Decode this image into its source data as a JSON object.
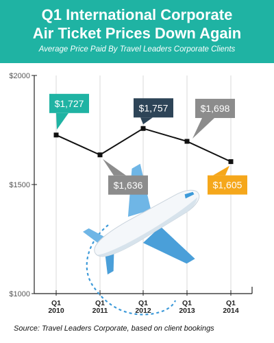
{
  "header": {
    "title_line1": "Q1 International Corporate",
    "title_line2": "Air Ticket Prices Down Again",
    "subtitle": "Average Price Paid By Travel Leaders Corporate Clients"
  },
  "source": "Source: Travel Leaders Corporate, based on client bookings",
  "colors": {
    "header_bg": "#1fb3a3",
    "line": "#111111",
    "callout_teal": "#1fb3a3",
    "callout_navy": "#2d4457",
    "callout_gray": "#8c8c8c",
    "callout_orange": "#f5a71b",
    "plane_blue": "#3d9ad9"
  },
  "icons": [
    "airplane-icon"
  ],
  "chart_data": {
    "type": "line",
    "categories": [
      "Q1\n2010",
      "Q1\n2011",
      "Q1\n2012",
      "Q1\n2013",
      "Q1\n2014"
    ],
    "category_lines": [
      [
        "Q1",
        "2010"
      ],
      [
        "Q1",
        "2011"
      ],
      [
        "Q1",
        "2012"
      ],
      [
        "Q1",
        "2013"
      ],
      [
        "Q1",
        "2014"
      ]
    ],
    "values": [
      1727,
      1636,
      1757,
      1698,
      1605
    ],
    "data_labels": [
      "$1,727",
      "$1,636",
      "$1,757",
      "$1,698",
      "$1,605"
    ],
    "label_colors": [
      "#1fb3a3",
      "#8c8c8c",
      "#2d4457",
      "#8c8c8c",
      "#f5a71b"
    ],
    "label_side": [
      "above",
      "below",
      "above",
      "above",
      "below"
    ],
    "ylim": [
      1000,
      2000
    ],
    "yticks": [
      1000,
      1500,
      2000
    ],
    "ytick_labels": [
      "$1000",
      "$1500",
      "$2000"
    ],
    "grid": "vertical",
    "title": "Q1 International Corporate Air Ticket Prices Down Again",
    "subtitle": "Average Price Paid By Travel Leaders Corporate Clients"
  }
}
